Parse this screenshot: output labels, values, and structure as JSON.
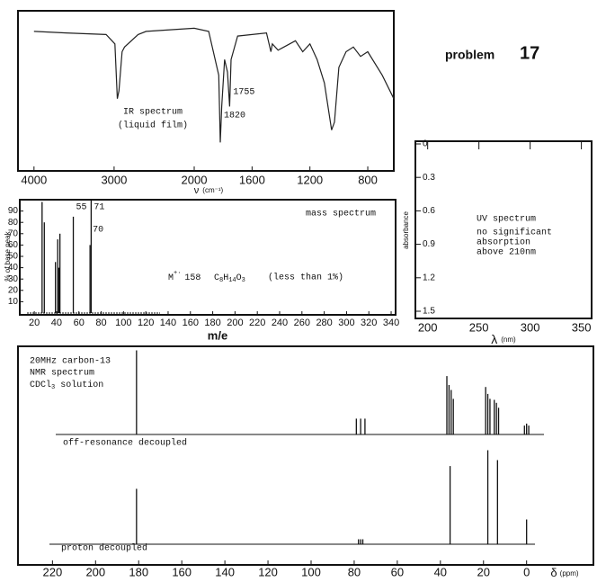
{
  "header": {
    "title": "problem",
    "number": "17"
  },
  "chart_data": [
    {
      "type": "line",
      "title": "IR spectrum",
      "subtitle": "(liquid film)",
      "xlabel": "ν",
      "xunit": "(cm⁻¹)",
      "x": [
        4000,
        3600,
        3100,
        2990,
        2960,
        2940,
        2900,
        2870,
        2700,
        2600,
        2000,
        1900,
        1830,
        1820,
        1810,
        1790,
        1770,
        1755,
        1745,
        1700,
        1500,
        1470,
        1460,
        1420,
        1380,
        1300,
        1250,
        1200,
        1150,
        1100,
        1050,
        1030,
        1000,
        950,
        900,
        850,
        800,
        700,
        620
      ],
      "values": [
        88,
        87,
        86,
        80,
        45,
        50,
        75,
        78,
        86,
        88,
        90,
        88,
        60,
        17,
        40,
        70,
        62,
        40,
        70,
        85,
        87,
        75,
        80,
        76,
        78,
        82,
        75,
        80,
        70,
        55,
        25,
        30,
        65,
        75,
        78,
        72,
        75,
        60,
        45
      ],
      "color": "#222222",
      "xlim": [
        4200,
        620
      ],
      "x_scale_break": 2000,
      "xticks": [
        4000,
        3000,
        2000,
        1600,
        1200,
        800
      ],
      "ylim": [
        0,
        100
      ],
      "annotations": [
        {
          "text": "1755",
          "x": 1755
        },
        {
          "text": "1820",
          "x": 1820
        }
      ]
    },
    {
      "type": "stick",
      "title": "mass spectrum",
      "xlabel": "m/e",
      "ylabel": "% of base peak",
      "x": [
        27,
        29,
        39,
        41,
        42,
        43,
        55,
        70,
        71
      ],
      "values": [
        98,
        80,
        45,
        65,
        40,
        70,
        85,
        60,
        100
      ],
      "color": "#111111",
      "xlim": [
        7,
        344
      ],
      "xticks": [
        20,
        40,
        60,
        80,
        100,
        120,
        140,
        160,
        180,
        200,
        220,
        240,
        260,
        280,
        300,
        320,
        340
      ],
      "ylim": [
        0,
        100
      ],
      "yticks": [
        10,
        20,
        30,
        40,
        50,
        60,
        70,
        80,
        90
      ],
      "annotations": [
        {
          "text": "55",
          "x": 55
        },
        {
          "text": "70",
          "x": 70
        },
        {
          "text": "71",
          "x": 71
        }
      ],
      "molecular_ion": {
        "symbol": "M",
        "charge": "+·",
        "mass": 158
      },
      "formula": [
        "C",
        "8",
        "H",
        "14",
        "O",
        "3"
      ],
      "note": "(less than 1%)"
    },
    {
      "type": "line",
      "title": "UV spectrum",
      "notes": [
        "no significant",
        "absorption",
        "above 210nm"
      ],
      "xlabel": "λ",
      "xunit": "(nm)",
      "ylabel": "absorbance",
      "xlim": [
        188,
        360
      ],
      "xticks": [
        200,
        250,
        300,
        350
      ],
      "ylim": [
        0,
        1.5
      ],
      "y_inverted": true,
      "yticks": [
        0,
        0.3,
        0.6,
        0.9,
        1.2,
        1.5
      ],
      "series": []
    },
    {
      "type": "stick",
      "title_lines": [
        "20MHz carbon-13",
        "NMR spectrum"
      ],
      "solvent": [
        "CDCl",
        "3",
        " solution"
      ],
      "xlabel": "δ",
      "xunit": "(ppm)",
      "xlim": [
        236,
        -31
      ],
      "xticks": [
        220,
        200,
        180,
        160,
        140,
        120,
        100,
        80,
        60,
        40,
        20,
        0
      ],
      "ylim": [
        0,
        100
      ],
      "series": [
        {
          "name": "off-resonance decoupled",
          "color": "#111111",
          "x": [
            181,
            79,
            77,
            75,
            37,
            36,
            35,
            34,
            19,
            18,
            17,
            15,
            14,
            13,
            1,
            0,
            -1
          ],
          "values": [
            85,
            16,
            16,
            16,
            59,
            50,
            45,
            36,
            48,
            41,
            36,
            35,
            32,
            27,
            9,
            11,
            9
          ]
        },
        {
          "name": "proton decoupled",
          "color": "#111111",
          "x": [
            181,
            78,
            77,
            76,
            35.5,
            18,
            13.5,
            0
          ],
          "values": [
            56,
            5,
            5,
            5,
            79,
            95,
            85,
            25
          ]
        }
      ]
    }
  ]
}
